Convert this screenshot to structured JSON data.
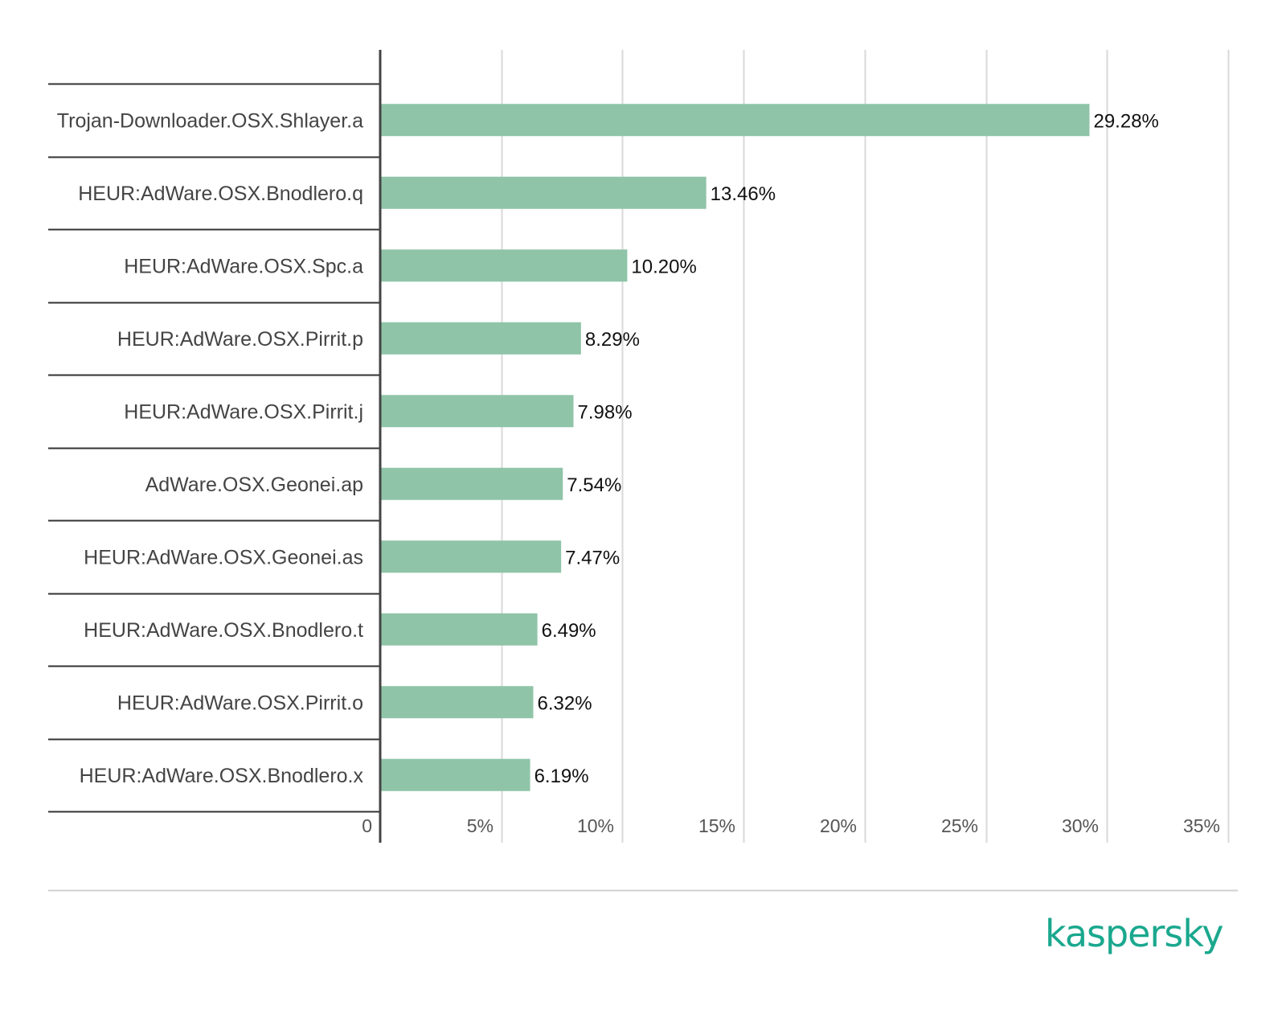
{
  "chart_data": {
    "type": "bar",
    "orientation": "horizontal",
    "categories": [
      "Trojan-Downloader.OSX.Shlayer.a",
      "HEUR:AdWare.OSX.Bnodlero.q",
      "HEUR:AdWare.OSX.Spc.a",
      "HEUR:AdWare.OSX.Pirrit.p",
      "HEUR:AdWare.OSX.Pirrit.j",
      "AdWare.OSX.Geonei.ap",
      "HEUR:AdWare.OSX.Geonei.as",
      "HEUR:AdWare.OSX.Bnodlero.t",
      "HEUR:AdWare.OSX.Pirrit.o",
      "HEUR:AdWare.OSX.Bnodlero.x"
    ],
    "values": [
      29.28,
      13.46,
      10.2,
      8.29,
      7.98,
      7.54,
      7.47,
      6.49,
      6.32,
      6.19
    ],
    "value_labels": [
      "29.28%",
      "13.46%",
      "10.20%",
      "8.29%",
      "7.98%",
      "7.54%",
      "7.47%",
      "6.49%",
      "6.32%",
      "6.19%"
    ],
    "xlim": [
      0,
      35
    ],
    "ticks": [
      0,
      5,
      10,
      15,
      20,
      25,
      30,
      35
    ],
    "tick_labels": [
      "0",
      "5%",
      "10%",
      "15%",
      "20%",
      "25%",
      "30%",
      "35%"
    ],
    "grid": true,
    "title": "",
    "xlabel": "",
    "ylabel": ""
  },
  "colors": {
    "bar": "#8fc4a8",
    "grid": "#d9d9d9",
    "axis": "#444444",
    "separator": "#333333",
    "logo": "#1aa88e"
  },
  "brand": {
    "logo_text": "kaspersky"
  }
}
